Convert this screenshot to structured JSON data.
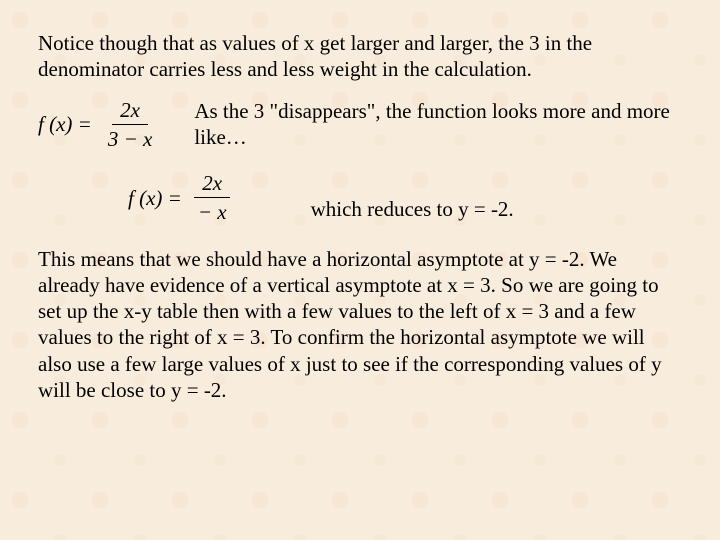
{
  "para1": "Notice though that as values of x get larger and larger, the 3 in the denominator carries less and less weight in the calculation.",
  "formula1": {
    "lhs": "f (x) =",
    "num": "2x",
    "den": "3 − x"
  },
  "aside1": "As the 3 \"disappears\", the function looks more and more like…",
  "formula2": {
    "lhs": "f (x) =",
    "num": "2x",
    "den": "− x"
  },
  "aside2": "which reduces to y = -2.",
  "para2": "This means that we should have a horizontal asymptote at y = -2. We already have evidence of a vertical asymptote at x = 3. So we are going to set up the x-y table then with a few values to the left of x = 3 and a few values to the right of x = 3. To confirm the horizontal asymptote we will also use a few large values of x just to see if the corresponding values of y will be close to y = -2.",
  "style": {
    "background_color": "#f8ecdc",
    "text_color": "#000000",
    "font_family": "Times New Roman",
    "font_size_pt": 16
  }
}
